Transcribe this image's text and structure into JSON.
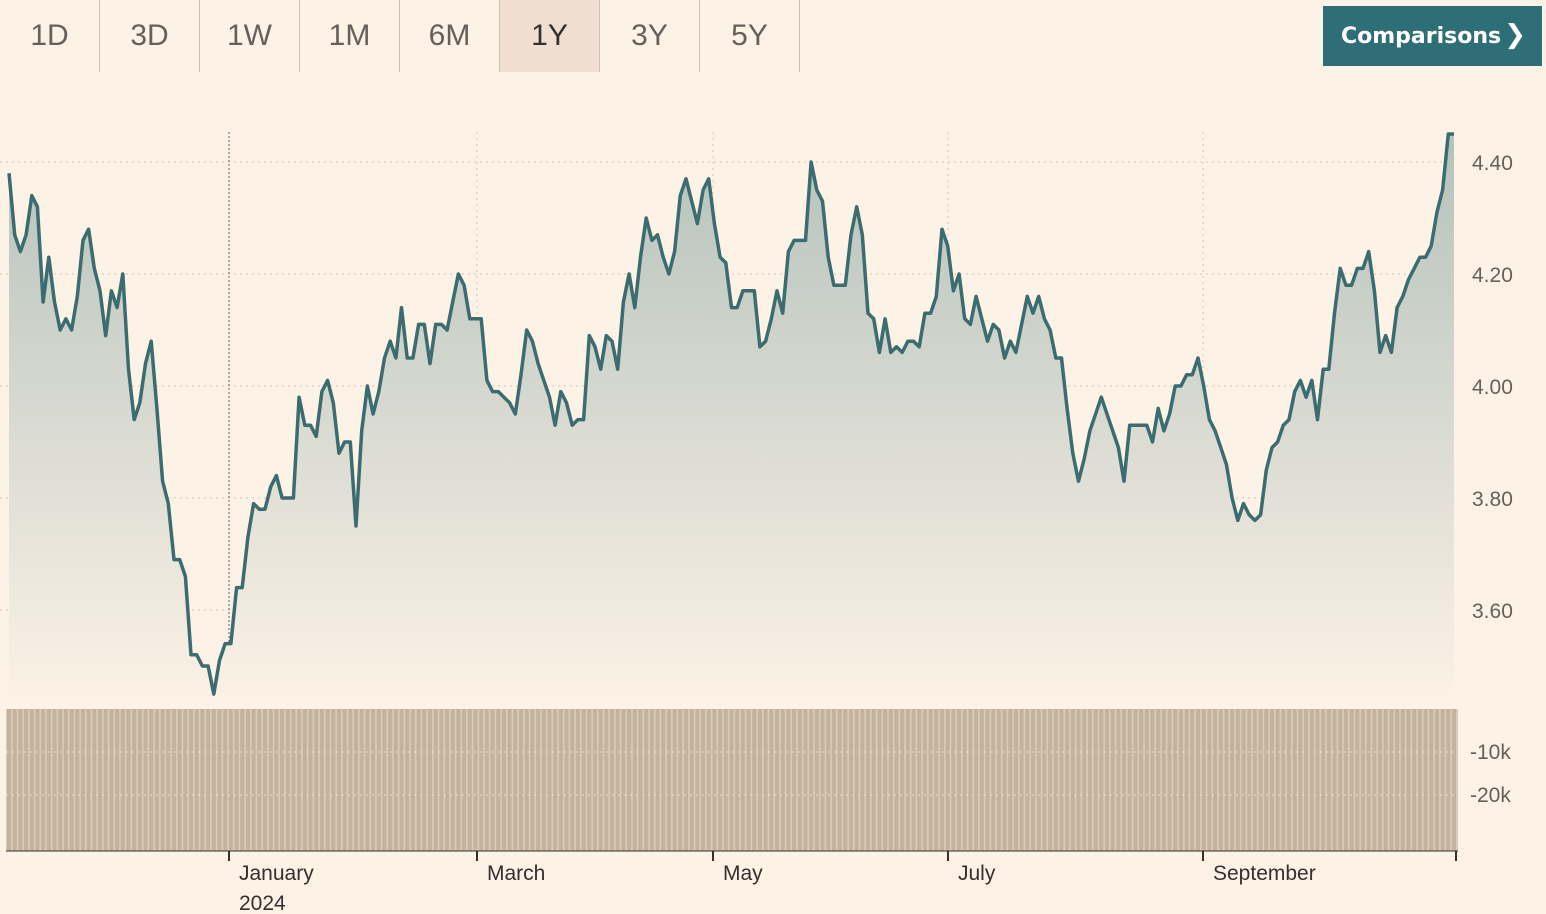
{
  "range_tabs": [
    {
      "label": "1D",
      "active": false
    },
    {
      "label": "3D",
      "active": false
    },
    {
      "label": "1W",
      "active": false
    },
    {
      "label": "1M",
      "active": false
    },
    {
      "label": "6M",
      "active": false
    },
    {
      "label": "1Y",
      "active": true
    },
    {
      "label": "3Y",
      "active": false
    },
    {
      "label": "5Y",
      "active": false
    }
  ],
  "comparisons_button": {
    "label": "Comparisons",
    "icon": "chevron-right-icon",
    "color": "#2e6e76"
  },
  "colors": {
    "line": "#3b6c6f",
    "volume": "#c9b9a2",
    "background": "#fdf2e6",
    "active_tab": "#f0dfd1"
  },
  "chart_data": {
    "type": "area",
    "title": "",
    "xlabel": "",
    "ylabel": "",
    "ylim": [
      3.44,
      4.46
    ],
    "y_ticks": [
      "3.60",
      "3.80",
      "4.00",
      "4.20",
      "4.40"
    ],
    "x_axis_labels": [
      {
        "label": "January",
        "sub": "2024"
      },
      {
        "label": "March",
        "sub": ""
      },
      {
        "label": "May",
        "sub": ""
      },
      {
        "label": "July",
        "sub": ""
      },
      {
        "label": "September",
        "sub": ""
      }
    ],
    "grid": true,
    "series": [
      {
        "values": [
          4.38,
          4.27,
          4.24,
          4.27,
          4.34,
          4.32,
          4.15,
          4.23,
          4.15,
          4.1,
          4.12,
          4.1,
          4.16,
          4.26,
          4.28,
          4.21,
          4.17,
          4.09,
          4.17,
          4.14,
          4.2,
          4.03,
          3.94,
          3.97,
          4.04,
          4.08,
          3.96,
          3.83,
          3.79,
          3.69,
          3.69,
          3.66,
          3.52,
          3.52,
          3.5,
          3.5,
          3.45,
          3.51,
          3.54,
          3.54,
          3.64,
          3.64,
          3.73,
          3.79,
          3.78,
          3.78,
          3.82,
          3.84,
          3.8,
          3.8,
          3.8,
          3.98,
          3.93,
          3.93,
          3.91,
          3.99,
          4.01,
          3.97,
          3.88,
          3.9,
          3.9,
          3.75,
          3.92,
          4.0,
          3.95,
          3.99,
          4.05,
          4.08,
          4.05,
          4.14,
          4.05,
          4.05,
          4.11,
          4.11,
          4.04,
          4.11,
          4.11,
          4.1,
          4.15,
          4.2,
          4.18,
          4.12,
          4.12,
          4.12,
          4.01,
          3.99,
          3.99,
          3.98,
          3.97,
          3.95,
          4.02,
          4.1,
          4.08,
          4.04,
          4.01,
          3.98,
          3.93,
          3.99,
          3.97,
          3.93,
          3.94,
          3.94,
          4.09,
          4.07,
          4.03,
          4.09,
          4.08,
          4.03,
          4.15,
          4.2,
          4.14,
          4.23,
          4.3,
          4.26,
          4.27,
          4.23,
          4.2,
          4.24,
          4.34,
          4.37,
          4.33,
          4.29,
          4.35,
          4.37,
          4.29,
          4.23,
          4.22,
          4.14,
          4.14,
          4.17,
          4.17,
          4.17,
          4.07,
          4.08,
          4.12,
          4.17,
          4.13,
          4.24,
          4.26,
          4.26,
          4.26,
          4.4,
          4.35,
          4.33,
          4.23,
          4.18,
          4.18,
          4.18,
          4.27,
          4.32,
          4.27,
          4.13,
          4.12,
          4.06,
          4.12,
          4.06,
          4.07,
          4.06,
          4.08,
          4.08,
          4.07,
          4.13,
          4.13,
          4.16,
          4.28,
          4.25,
          4.17,
          4.2,
          4.12,
          4.11,
          4.16,
          4.12,
          4.08,
          4.11,
          4.1,
          4.05,
          4.08,
          4.06,
          4.11,
          4.16,
          4.13,
          4.16,
          4.12,
          4.1,
          4.05,
          4.05,
          3.96,
          3.88,
          3.83,
          3.87,
          3.92,
          3.95,
          3.98,
          3.95,
          3.92,
          3.89,
          3.83,
          3.93,
          3.93,
          3.93,
          3.93,
          3.9,
          3.96,
          3.92,
          3.95,
          4.0,
          4.0,
          4.02,
          4.02,
          4.05,
          4.0,
          3.94,
          3.92,
          3.89,
          3.86,
          3.8,
          3.76,
          3.79,
          3.77,
          3.76,
          3.77,
          3.85,
          3.89,
          3.9,
          3.93,
          3.94,
          3.99,
          4.01,
          3.98,
          4.01,
          3.94,
          4.03,
          4.03,
          4.13,
          4.21,
          4.18,
          4.18,
          4.21,
          4.21,
          4.24,
          4.17,
          4.06,
          4.09,
          4.06,
          4.14,
          4.16,
          4.19,
          4.21,
          4.23,
          4.23,
          4.25,
          4.31,
          4.35,
          4.45,
          4.45
        ]
      }
    ],
    "volume": {
      "y_ticks": [
        "-10k",
        "-20k"
      ]
    }
  }
}
